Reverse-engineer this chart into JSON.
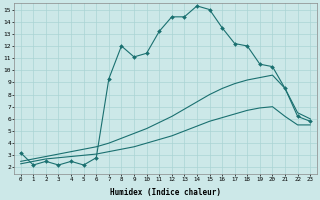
{
  "xlabel": "Humidex (Indice chaleur)",
  "bg_color": "#cce8e8",
  "line_color": "#1a7070",
  "grid_color": "#aad4d4",
  "xlim": [
    -0.5,
    23.5
  ],
  "ylim": [
    1.5,
    15.5
  ],
  "xticks": [
    0,
    1,
    2,
    3,
    4,
    5,
    6,
    7,
    8,
    9,
    10,
    11,
    12,
    13,
    14,
    15,
    16,
    17,
    18,
    19,
    20,
    21,
    22,
    23
  ],
  "yticks": [
    2,
    3,
    4,
    5,
    6,
    7,
    8,
    9,
    10,
    11,
    12,
    13,
    14,
    15
  ],
  "line1_x": [
    0,
    1,
    2,
    3,
    4,
    5,
    6,
    7,
    8,
    9,
    10,
    11,
    12,
    13,
    14,
    15,
    16,
    17,
    18,
    19,
    20,
    21,
    22,
    23
  ],
  "line1_y": [
    3.2,
    2.2,
    2.5,
    2.2,
    2.5,
    2.2,
    2.8,
    9.3,
    12.0,
    11.1,
    11.4,
    13.2,
    14.4,
    14.4,
    15.3,
    15.0,
    13.5,
    12.2,
    12.0,
    10.5,
    10.3,
    8.5,
    6.2,
    5.8
  ],
  "line2_x": [
    0,
    1,
    2,
    3,
    4,
    5,
    6,
    7,
    8,
    9,
    10,
    11,
    12,
    13,
    14,
    15,
    16,
    17,
    18,
    19,
    20,
    21,
    22,
    23
  ],
  "line2_y": [
    2.5,
    2.7,
    2.9,
    3.1,
    3.3,
    3.5,
    3.7,
    4.0,
    4.4,
    4.8,
    5.2,
    5.7,
    6.2,
    6.8,
    7.4,
    8.0,
    8.5,
    8.9,
    9.2,
    9.4,
    9.6,
    8.5,
    6.5,
    6.0
  ],
  "line3_x": [
    0,
    1,
    2,
    3,
    4,
    5,
    6,
    7,
    8,
    9,
    10,
    11,
    12,
    13,
    14,
    15,
    16,
    17,
    18,
    19,
    20,
    21,
    22,
    23
  ],
  "line3_y": [
    2.3,
    2.5,
    2.7,
    2.8,
    2.9,
    3.0,
    3.1,
    3.3,
    3.5,
    3.7,
    4.0,
    4.3,
    4.6,
    5.0,
    5.4,
    5.8,
    6.1,
    6.4,
    6.7,
    6.9,
    7.0,
    6.2,
    5.5,
    5.5
  ]
}
